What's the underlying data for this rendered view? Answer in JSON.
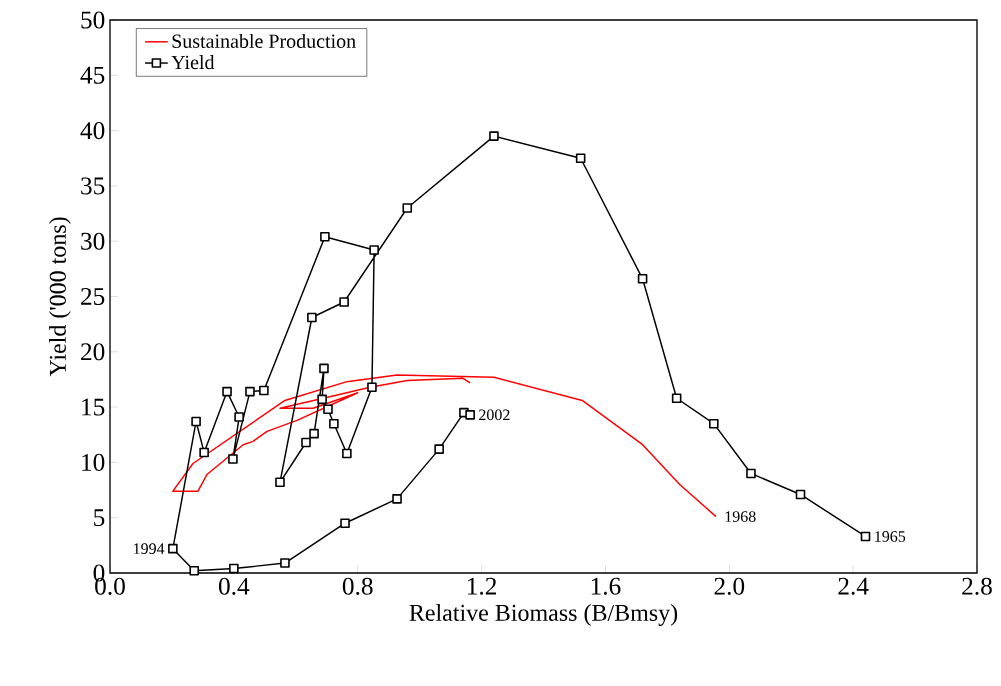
{
  "chart_data": {
    "type": "line",
    "xlabel": "Relative Biomass (B/Bmsy)",
    "ylabel": "Yield ('000 tons)",
    "xlim": [
      0,
      2.8
    ],
    "ylim": [
      0,
      50
    ],
    "xticks": [
      {
        "value": 0,
        "label": "0.0"
      },
      {
        "value": 0.4,
        "label": "0.4"
      },
      {
        "value": 0.8,
        "label": "0.8"
      },
      {
        "value": 1.2,
        "label": "1.2"
      },
      {
        "value": 1.6,
        "label": "1.6"
      },
      {
        "value": 2.0,
        "label": "2.0"
      },
      {
        "value": 2.4,
        "label": "2.4"
      },
      {
        "value": 2.8,
        "label": "2.8"
      }
    ],
    "yticks": [
      0,
      5,
      10,
      15,
      20,
      25,
      30,
      35,
      40,
      45,
      50
    ],
    "grid": false,
    "legend": "top left",
    "line_style": "solid",
    "series": [
      {
        "name": "Sustainable Production",
        "color": "#ff0000",
        "marker": "none",
        "x": [
          1.957,
          1.84,
          1.72,
          1.525,
          1.24,
          0.927,
          0.765,
          0.565,
          0.268,
          0.203,
          0.284,
          0.313,
          0.43,
          0.462,
          0.507,
          0.604,
          0.8,
          0.656,
          0.549,
          0.72,
          0.84,
          0.96,
          1.14,
          1.163
        ],
        "values": [
          5.1,
          8.0,
          11.6,
          15.6,
          17.7,
          17.9,
          17.3,
          15.6,
          9.9,
          7.4,
          7.4,
          8.9,
          11.6,
          11.9,
          12.8,
          13.8,
          16.3,
          14.9,
          14.9,
          16.0,
          16.8,
          17.4,
          17.6,
          17.2
        ]
      },
      {
        "name": "Yield",
        "color": "#000000",
        "marker": "square",
        "x": [
          2.44,
          2.23,
          2.07,
          1.95,
          1.83,
          1.72,
          1.52,
          1.24,
          0.96,
          0.756,
          0.652,
          0.549,
          0.633,
          0.659,
          0.691,
          0.685,
          0.704,
          0.723,
          0.765,
          0.846,
          0.853,
          0.694,
          0.497,
          0.452,
          0.397,
          0.417,
          0.378,
          0.304,
          0.278,
          0.203,
          0.272,
          0.4,
          0.565,
          0.759,
          0.927,
          1.063,
          1.143,
          1.163
        ],
        "values": [
          3.3,
          7.1,
          9.0,
          13.5,
          15.8,
          26.6,
          37.5,
          39.5,
          33.0,
          24.5,
          23.1,
          8.2,
          11.8,
          12.6,
          18.5,
          15.7,
          14.8,
          13.5,
          10.8,
          16.8,
          29.2,
          30.4,
          16.5,
          16.4,
          10.3,
          14.1,
          16.4,
          10.9,
          13.7,
          2.2,
          0.2,
          0.4,
          0.9,
          4.5,
          6.7,
          11.2,
          14.5,
          14.3
        ]
      }
    ],
    "annotations": [
      {
        "text": "1994",
        "x": 0.203,
        "y": 2.2
      },
      {
        "text": "2002",
        "x": 1.163,
        "y": 14.3
      },
      {
        "text": "1968",
        "x": 1.957,
        "y": 5.1
      },
      {
        "text": "1965",
        "x": 2.44,
        "y": 3.3
      }
    ]
  }
}
